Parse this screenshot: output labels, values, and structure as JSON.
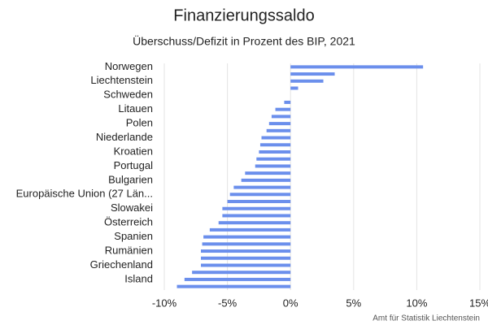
{
  "chart_data": {
    "type": "hbar",
    "title": "Finanzierungssaldo",
    "subtitle": "Überschuss/Defizit in Prozent des BIP, 2021",
    "source": "Amt für Statistik Liechtenstein",
    "categories": [
      "Norwegen",
      null,
      "Liechtenstein",
      null,
      "Schweden",
      null,
      "Litauen",
      null,
      "Polen",
      null,
      "Niederlande",
      null,
      "Kroatien",
      null,
      "Portugal",
      null,
      "Bulgarien",
      null,
      "Europäische Union (27 Län...",
      null,
      "Slowakei",
      null,
      "Österreich",
      null,
      "Spanien",
      null,
      "Rumänien",
      null,
      "Griechenland",
      null,
      "Island",
      null
    ],
    "values": [
      10.5,
      3.5,
      2.6,
      0.6,
      0,
      -0.5,
      -1.2,
      -1.5,
      -1.7,
      -1.9,
      -2.3,
      -2.4,
      -2.5,
      -2.7,
      -2.8,
      -3.6,
      -3.9,
      -4.5,
      -4.8,
      -5.0,
      -5.4,
      -5.4,
      -5.7,
      -6.4,
      -6.9,
      -7.0,
      -7.1,
      -7.1,
      -7.1,
      -7.8,
      -8.4,
      -9.0
    ],
    "color": "#6b8fec",
    "xlim": [
      -10,
      15
    ],
    "xticks": [
      {
        "value": -10,
        "label": "-10%"
      },
      {
        "value": -5,
        "label": "-5%"
      },
      {
        "value": 0,
        "label": "0%"
      },
      {
        "value": 5,
        "label": "5%"
      },
      {
        "value": 10,
        "label": "10%"
      },
      {
        "value": 15,
        "label": "15%"
      }
    ],
    "grid": true
  }
}
